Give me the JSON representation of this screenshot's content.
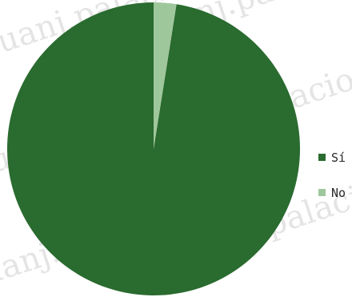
{
  "chart_data": {
    "type": "pie",
    "categories": [
      "Sí",
      "No"
    ],
    "values": [
      97.5,
      2.5
    ],
    "colors": [
      "#2a6b2f",
      "#9fc79c"
    ],
    "legend_position": "right",
    "watermark": "juanj.palacio"
  }
}
